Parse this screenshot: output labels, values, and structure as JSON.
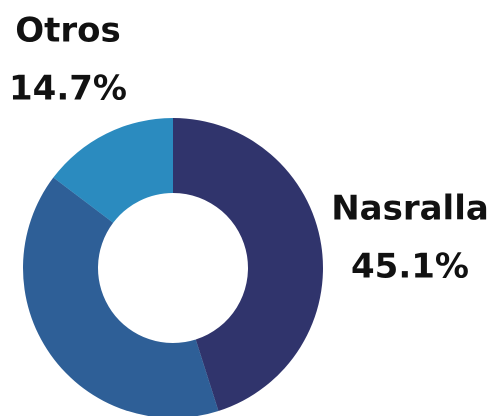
{
  "chart_data": {
    "type": "donut",
    "categories": [
      "Nasralla",
      null,
      "Otros"
    ],
    "values": [
      45.1,
      40.2,
      14.7
    ],
    "value_labels": [
      "45.1%",
      null,
      "14.7%"
    ],
    "colors": [
      "#30346c",
      "#2e5f97",
      "#2b8bbf"
    ]
  }
}
